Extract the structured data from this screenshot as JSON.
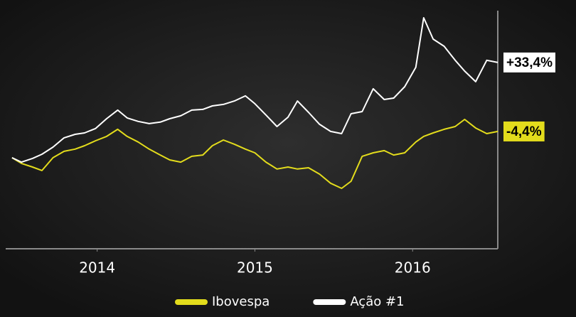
{
  "chart_data": {
    "type": "line",
    "x": [
      2013.46,
      2013.52,
      2013.59,
      2013.65,
      2013.72,
      2013.79,
      2013.86,
      2013.92,
      2013.99,
      2014.06,
      2014.13,
      2014.19,
      2014.26,
      2014.33,
      2014.4,
      2014.46,
      2014.53,
      2014.6,
      2014.67,
      2014.73,
      2014.8,
      2014.87,
      2014.94,
      2015.0,
      2015.07,
      2015.14,
      2015.21,
      2015.27,
      2015.34,
      2015.41,
      2015.48,
      2015.55,
      2015.61,
      2015.68,
      2015.75,
      2015.82,
      2015.88,
      2015.95,
      2016.02,
      2016.07,
      2016.13,
      2016.2,
      2016.27,
      2016.33,
      2016.4,
      2016.47,
      2016.54
    ],
    "xlim": [
      2013.42,
      2016.54
    ],
    "xticks": [
      2014,
      2015,
      2016
    ],
    "ylim": [
      -68.7,
      61.8
    ],
    "series": [
      {
        "name": "Ibovespa",
        "color": "#e3dc1c",
        "values": [
          -18.8,
          -21.9,
          -23.9,
          -25.8,
          -18.8,
          -15.3,
          -14.1,
          -12.2,
          -9.5,
          -7.1,
          -3.2,
          -7.1,
          -10.2,
          -14.1,
          -17.3,
          -20.0,
          -21.2,
          -18.0,
          -17.3,
          -12.2,
          -9.1,
          -11.4,
          -14.1,
          -16.1,
          -21.2,
          -25.0,
          -23.9,
          -25.0,
          -24.3,
          -27.8,
          -32.8,
          -35.6,
          -31.7,
          -18.0,
          -16.1,
          -14.9,
          -17.3,
          -16.1,
          -10.2,
          -7.1,
          -5.2,
          -3.2,
          -1.7,
          2.2,
          -2.5,
          -5.6,
          -4.4
        ],
        "value_labels": [
          null,
          null,
          null,
          null,
          null,
          null,
          null,
          null,
          null,
          null,
          null,
          null,
          null,
          null,
          null,
          null,
          null,
          null,
          null,
          null,
          null,
          null,
          null,
          null,
          null,
          null,
          null,
          null,
          null,
          null,
          null,
          null,
          null,
          null,
          null,
          null,
          null,
          null,
          null,
          null,
          null,
          null,
          null,
          null,
          null,
          null,
          "-4,4%"
        ]
      },
      {
        "name": "Ação #1",
        "color": "#ffffff",
        "values": [
          -18.8,
          -21.2,
          -19.2,
          -16.9,
          -13.0,
          -7.9,
          -6.0,
          -5.2,
          -2.8,
          2.6,
          7.3,
          3.0,
          1.1,
          -0.1,
          0.7,
          2.6,
          4.2,
          7.3,
          7.7,
          9.6,
          10.4,
          12.3,
          15.1,
          10.8,
          4.6,
          -1.7,
          3.4,
          12.3,
          6.1,
          -0.5,
          -4.4,
          -5.6,
          5.3,
          6.5,
          19.0,
          13.1,
          13.9,
          20.1,
          30.7,
          57.9,
          46.2,
          42.3,
          34.6,
          28.7,
          22.9,
          34.6,
          33.4
        ],
        "value_labels": [
          null,
          null,
          null,
          null,
          null,
          null,
          null,
          null,
          null,
          null,
          null,
          null,
          null,
          null,
          null,
          null,
          null,
          null,
          null,
          null,
          null,
          null,
          null,
          null,
          null,
          null,
          null,
          null,
          null,
          null,
          null,
          null,
          null,
          null,
          null,
          null,
          null,
          null,
          null,
          null,
          null,
          null,
          null,
          null,
          null,
          null,
          "+33,4%"
        ]
      }
    ]
  }
}
